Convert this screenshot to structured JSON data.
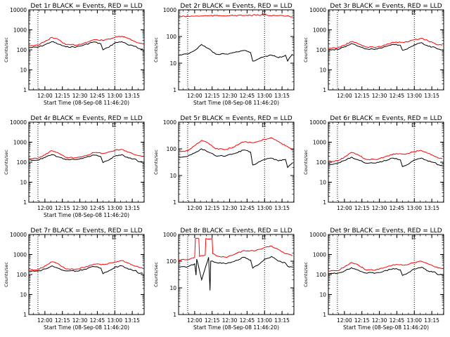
{
  "figure": {
    "background": "#ffffff"
  },
  "series_colors": {
    "Events": "#000000",
    "LLD": "#ff0000"
  },
  "chart_data": [
    {
      "type": "line",
      "title": "Det 1r BLACK = Events, RED = LLD",
      "xlabel": "Start Time (08-Sep-08 11:46:20)",
      "ylabel": "Counts/sec",
      "y_scale": "log",
      "ylim": [
        1,
        10000
      ],
      "x_ticks": [
        "12:00",
        "12:15",
        "12:30",
        "12:45",
        "13:00",
        "13:15"
      ],
      "y_ticks": [
        "1",
        "10",
        "100",
        "1000",
        "10000"
      ],
      "xlim_minutes": [
        11.77,
        13.42
      ],
      "vertical_markers": [
        "11.90",
        "13.00"
      ],
      "grid": false,
      "legend": "in title",
      "series": [
        {
          "name": "Events",
          "color": "#000000",
          "x": [
            11.77,
            11.9,
            12.0,
            12.1,
            12.2,
            12.3,
            12.45,
            12.55,
            12.7,
            12.8,
            12.83,
            12.9,
            13.0,
            13.1,
            13.2,
            13.3,
            13.33,
            13.4
          ],
          "y": [
            130,
            135,
            180,
            260,
            190,
            140,
            140,
            170,
            250,
            200,
            100,
            130,
            220,
            260,
            170,
            150,
            120,
            110
          ]
        },
        {
          "name": "LLD",
          "color": "#ff0000",
          "x": [
            11.77,
            11.9,
            12.0,
            12.1,
            12.2,
            12.3,
            12.45,
            12.55,
            12.7,
            12.85,
            13.0,
            13.1,
            13.2,
            13.3,
            13.4
          ],
          "y": [
            165,
            170,
            260,
            420,
            320,
            180,
            175,
            210,
            320,
            300,
            420,
            480,
            360,
            250,
            200
          ]
        }
      ]
    },
    {
      "type": "line",
      "title": "Det 2r BLACK = Events, RED = LLD",
      "xlabel": "Start Time (08-Sep-08 11:46:20)",
      "ylabel": "Counts/sec",
      "y_scale": "log",
      "ylim": [
        1,
        1000
      ],
      "x_ticks": [
        "12:00",
        "12:15",
        "12:30",
        "12:45",
        "13:00",
        "13:15"
      ],
      "y_ticks": [
        "1",
        "10",
        "100",
        "1000"
      ],
      "xlim_minutes": [
        11.77,
        13.42
      ],
      "vertical_markers": [
        "11.90",
        "13.00"
      ],
      "grid": false,
      "legend": "in title",
      "series": [
        {
          "name": "Events",
          "color": "#000000",
          "x": [
            11.77,
            11.9,
            12.0,
            12.1,
            12.2,
            12.3,
            12.45,
            12.55,
            12.7,
            12.8,
            12.83,
            12.9,
            13.0,
            13.1,
            13.2,
            13.3,
            13.33,
            13.4
          ],
          "y": [
            20,
            22,
            30,
            50,
            35,
            22,
            22,
            25,
            30,
            25,
            12,
            14,
            18,
            20,
            16,
            20,
            12,
            22
          ]
        },
        {
          "name": "LLD",
          "color": "#ff0000",
          "x": [
            11.77,
            12.0,
            12.2,
            12.5,
            12.8,
            13.0,
            13.2,
            13.4
          ],
          "y": [
            560,
            580,
            600,
            610,
            620,
            640,
            600,
            560
          ]
        }
      ]
    },
    {
      "type": "line",
      "title": "Det 3r BLACK = Events, RED = LLD",
      "xlabel": "",
      "ylabel": "Counts/sec",
      "y_scale": "log",
      "ylim": [
        1,
        10000
      ],
      "x_ticks": [
        "12:00",
        "12:15",
        "12:30",
        "12:45",
        "13:00",
        "13:15"
      ],
      "y_ticks": [
        "1",
        "10",
        "100",
        "1000",
        "10000"
      ],
      "xlim_minutes": [
        11.77,
        13.42
      ],
      "vertical_markers": [
        "11.90",
        "13.00"
      ],
      "grid": false,
      "legend": "in title",
      "series": [
        {
          "name": "Events",
          "color": "#000000",
          "x": [
            11.77,
            11.9,
            12.0,
            12.1,
            12.2,
            12.3,
            12.45,
            12.55,
            12.7,
            12.8,
            12.83,
            12.9,
            13.0,
            13.1,
            13.2,
            13.3,
            13.33,
            13.4
          ],
          "y": [
            100,
            105,
            140,
            210,
            150,
            110,
            110,
            130,
            190,
            170,
            95,
            110,
            180,
            230,
            150,
            130,
            110,
            100
          ]
        },
        {
          "name": "LLD",
          "color": "#ff0000",
          "x": [
            11.77,
            11.9,
            12.0,
            12.1,
            12.2,
            12.3,
            12.45,
            12.55,
            12.7,
            12.85,
            13.0,
            13.1,
            13.2,
            13.3,
            13.4
          ],
          "y": [
            120,
            125,
            170,
            260,
            200,
            140,
            135,
            160,
            240,
            230,
            320,
            380,
            280,
            200,
            170
          ]
        }
      ]
    },
    {
      "type": "line",
      "title": "Det 4r BLACK = Events, RED = LLD",
      "xlabel": "Start Time (08-Sep-08 11:46:20)",
      "ylabel": "Counts/sec",
      "y_scale": "log",
      "ylim": [
        1,
        10000
      ],
      "x_ticks": [
        "12:00",
        "12:15",
        "12:30",
        "12:45",
        "13:00",
        "13:15"
      ],
      "y_ticks": [
        "1",
        "10",
        "100",
        "1000",
        "10000"
      ],
      "xlim_minutes": [
        11.77,
        13.42
      ],
      "vertical_markers": [
        "11.90",
        "13.00"
      ],
      "grid": false,
      "legend": "in title",
      "series": [
        {
          "name": "Events",
          "color": "#000000",
          "x": [
            11.77,
            11.9,
            12.0,
            12.1,
            12.2,
            12.3,
            12.45,
            12.55,
            12.7,
            12.8,
            12.83,
            12.9,
            13.0,
            13.1,
            13.2,
            13.3,
            13.33,
            13.4
          ],
          "y": [
            125,
            130,
            170,
            240,
            180,
            135,
            135,
            160,
            230,
            190,
            95,
            120,
            200,
            240,
            160,
            140,
            110,
            100
          ]
        },
        {
          "name": "LLD",
          "color": "#ff0000",
          "x": [
            11.77,
            11.9,
            12.0,
            12.1,
            12.2,
            12.3,
            12.45,
            12.55,
            12.7,
            12.85,
            13.0,
            13.1,
            13.2,
            13.3,
            13.4
          ],
          "y": [
            150,
            155,
            230,
            380,
            280,
            170,
            165,
            200,
            300,
            280,
            390,
            440,
            320,
            230,
            190
          ]
        }
      ]
    },
    {
      "type": "line",
      "title": "Det 5r BLACK = Events, RED = LLD",
      "xlabel": "",
      "ylabel": "Counts/sec",
      "y_scale": "log",
      "ylim": [
        1,
        1000
      ],
      "x_ticks": [
        "12:00",
        "12:15",
        "12:30",
        "12:45",
        "13:00",
        "13:15"
      ],
      "y_ticks": [
        "1",
        "10",
        "100",
        "1000"
      ],
      "xlim_minutes": [
        11.77,
        13.42
      ],
      "vertical_markers": [
        "11.90",
        "13.00"
      ],
      "grid": false,
      "legend": "in title",
      "series": [
        {
          "name": "Events",
          "color": "#000000",
          "x": [
            11.77,
            11.9,
            12.0,
            12.1,
            12.2,
            12.3,
            12.45,
            12.55,
            12.7,
            12.8,
            12.83,
            12.9,
            13.0,
            13.1,
            13.2,
            13.3,
            13.33,
            13.4
          ],
          "y": [
            50,
            52,
            70,
            100,
            75,
            55,
            55,
            65,
            90,
            75,
            25,
            30,
            40,
            45,
            35,
            40,
            20,
            30
          ]
        },
        {
          "name": "LLD",
          "color": "#ff0000",
          "x": [
            11.77,
            11.9,
            12.0,
            12.1,
            12.2,
            12.3,
            12.45,
            12.55,
            12.7,
            12.85,
            13.0,
            13.1,
            13.2,
            13.3,
            13.4
          ],
          "y": [
            80,
            85,
            130,
            210,
            160,
            100,
            95,
            115,
            180,
            170,
            230,
            260,
            190,
            130,
            90
          ]
        }
      ]
    },
    {
      "type": "line",
      "title": "Det 6r BLACK = Events, RED = LLD",
      "xlabel": "",
      "ylabel": "Counts/sec",
      "y_scale": "log",
      "ylim": [
        1,
        10000
      ],
      "x_ticks": [
        "12:00",
        "12:15",
        "12:30",
        "12:45",
        "13:00",
        "13:15"
      ],
      "y_ticks": [
        "1",
        "10",
        "100",
        "1000",
        "10000"
      ],
      "xlim_minutes": [
        11.77,
        13.42
      ],
      "vertical_markers": [
        "11.90",
        "13.00"
      ],
      "grid": false,
      "legend": "in title",
      "series": [
        {
          "name": "Events",
          "color": "#000000",
          "x": [
            11.77,
            11.9,
            12.0,
            12.1,
            12.2,
            12.3,
            12.45,
            12.55,
            12.7,
            12.8,
            12.83,
            12.9,
            13.0,
            13.1,
            13.2,
            13.3,
            13.33,
            13.4
          ],
          "y": [
            80,
            85,
            120,
            180,
            130,
            90,
            90,
            110,
            160,
            130,
            60,
            75,
            130,
            160,
            110,
            95,
            75,
            70
          ]
        },
        {
          "name": "LLD",
          "color": "#ff0000",
          "x": [
            11.77,
            11.9,
            12.0,
            12.1,
            12.2,
            12.3,
            12.45,
            12.55,
            12.7,
            12.85,
            13.0,
            13.1,
            13.2,
            13.3,
            13.4
          ],
          "y": [
            110,
            115,
            180,
            310,
            230,
            140,
            135,
            165,
            260,
            250,
            340,
            390,
            280,
            190,
            150
          ]
        }
      ]
    },
    {
      "type": "line",
      "title": "Det 7r BLACK = Events, RED = LLD",
      "xlabel": "Start Time (08-Sep-08 11:46:20)",
      "ylabel": "Counts/sec",
      "y_scale": "log",
      "ylim": [
        1,
        10000
      ],
      "x_ticks": [
        "12:00",
        "12:15",
        "12:30",
        "12:45",
        "13:00",
        "13:15"
      ],
      "y_ticks": [
        "1",
        "10",
        "100",
        "1000",
        "10000"
      ],
      "xlim_minutes": [
        11.77,
        13.42
      ],
      "vertical_markers": [
        "11.90",
        "13.00"
      ],
      "grid": false,
      "legend": "in title",
      "series": [
        {
          "name": "Events",
          "color": "#000000",
          "x": [
            11.77,
            11.9,
            12.0,
            12.1,
            12.2,
            12.3,
            12.45,
            12.55,
            12.7,
            12.8,
            12.83,
            12.9,
            13.0,
            13.1,
            13.2,
            13.3,
            13.33,
            13.4
          ],
          "y": [
            140,
            145,
            190,
            270,
            200,
            150,
            150,
            175,
            250,
            210,
            110,
            140,
            230,
            270,
            180,
            160,
            120,
            115
          ]
        },
        {
          "name": "LLD",
          "color": "#ff0000",
          "x": [
            11.77,
            11.9,
            12.0,
            12.1,
            12.2,
            12.3,
            12.45,
            12.55,
            12.7,
            12.85,
            13.0,
            13.1,
            13.2,
            13.3,
            13.4
          ],
          "y": [
            170,
            175,
            270,
            430,
            330,
            190,
            185,
            220,
            330,
            310,
            430,
            490,
            370,
            260,
            210
          ]
        }
      ]
    },
    {
      "type": "line",
      "title": "Det 8r BLACK = Events, RED = LLD",
      "xlabel": "Start Time (08-Sep-08 11:46:20)",
      "ylabel": "Counts/sec",
      "y_scale": "log",
      "ylim": [
        1,
        1000
      ],
      "x_ticks": [
        "12:00",
        "12:15",
        "12:30",
        "12:45",
        "13:00",
        "13:15"
      ],
      "y_ticks": [
        "1",
        "10",
        "100",
        "1000"
      ],
      "xlim_minutes": [
        11.77,
        13.42
      ],
      "vertical_markers": [
        "11.90",
        "13.00"
      ],
      "grid": false,
      "legend": "in title",
      "series": [
        {
          "name": "Events",
          "color": "#000000",
          "x": [
            11.77,
            11.9,
            12.0,
            12.02,
            12.03,
            12.1,
            12.2,
            12.22,
            12.23,
            12.3,
            12.45,
            12.55,
            12.7,
            12.8,
            12.83,
            12.9,
            13.0,
            13.1,
            13.2,
            13.3,
            13.33,
            13.4
          ],
          "y": [
            60,
            62,
            80,
            30,
            120,
            20,
            140,
            8,
            100,
            90,
            80,
            95,
            140,
            110,
            55,
            70,
            120,
            150,
            100,
            85,
            65,
            60
          ]
        },
        {
          "name": "LLD",
          "color": "#ff0000",
          "x": [
            11.77,
            11.9,
            12.0,
            12.01,
            12.06,
            12.07,
            12.15,
            12.16,
            12.25,
            12.26,
            12.35,
            12.45,
            12.55,
            12.7,
            12.85,
            13.0,
            13.1,
            13.2,
            13.3,
            13.4
          ],
          "y": [
            110,
            115,
            140,
            700,
            700,
            150,
            170,
            700,
            700,
            190,
            150,
            140,
            170,
            250,
            240,
            330,
            370,
            270,
            190,
            160
          ]
        }
      ]
    },
    {
      "type": "line",
      "title": "Det 9r BLACK = Events, RED = LLD",
      "xlabel": "Start Time (08-Sep-08 11:46:20)",
      "ylabel": "Counts/sec",
      "y_scale": "log",
      "ylim": [
        1,
        10000
      ],
      "x_ticks": [
        "12:00",
        "12:15",
        "12:30",
        "12:45",
        "13:00",
        "13:15"
      ],
      "y_ticks": [
        "1",
        "10",
        "100",
        "1000",
        "10000"
      ],
      "xlim_minutes": [
        11.77,
        13.42
      ],
      "vertical_markers": [
        "11.90",
        "13.00"
      ],
      "grid": false,
      "legend": "in title",
      "series": [
        {
          "name": "Events",
          "color": "#000000",
          "x": [
            11.77,
            11.9,
            12.0,
            12.1,
            12.2,
            12.3,
            12.45,
            12.55,
            12.7,
            12.8,
            12.83,
            12.9,
            13.0,
            13.1,
            13.2,
            13.3,
            13.33,
            13.4
          ],
          "y": [
            110,
            115,
            150,
            220,
            165,
            120,
            120,
            140,
            200,
            170,
            90,
            115,
            190,
            230,
            150,
            130,
            100,
            95
          ]
        },
        {
          "name": "LLD",
          "color": "#ff0000",
          "x": [
            11.77,
            11.9,
            12.0,
            12.1,
            12.2,
            12.3,
            12.45,
            12.55,
            12.7,
            12.85,
            13.0,
            13.1,
            13.2,
            13.3,
            13.4
          ],
          "y": [
            150,
            155,
            240,
            400,
            300,
            175,
            170,
            205,
            310,
            290,
            400,
            460,
            340,
            240,
            195
          ]
        }
      ]
    }
  ]
}
